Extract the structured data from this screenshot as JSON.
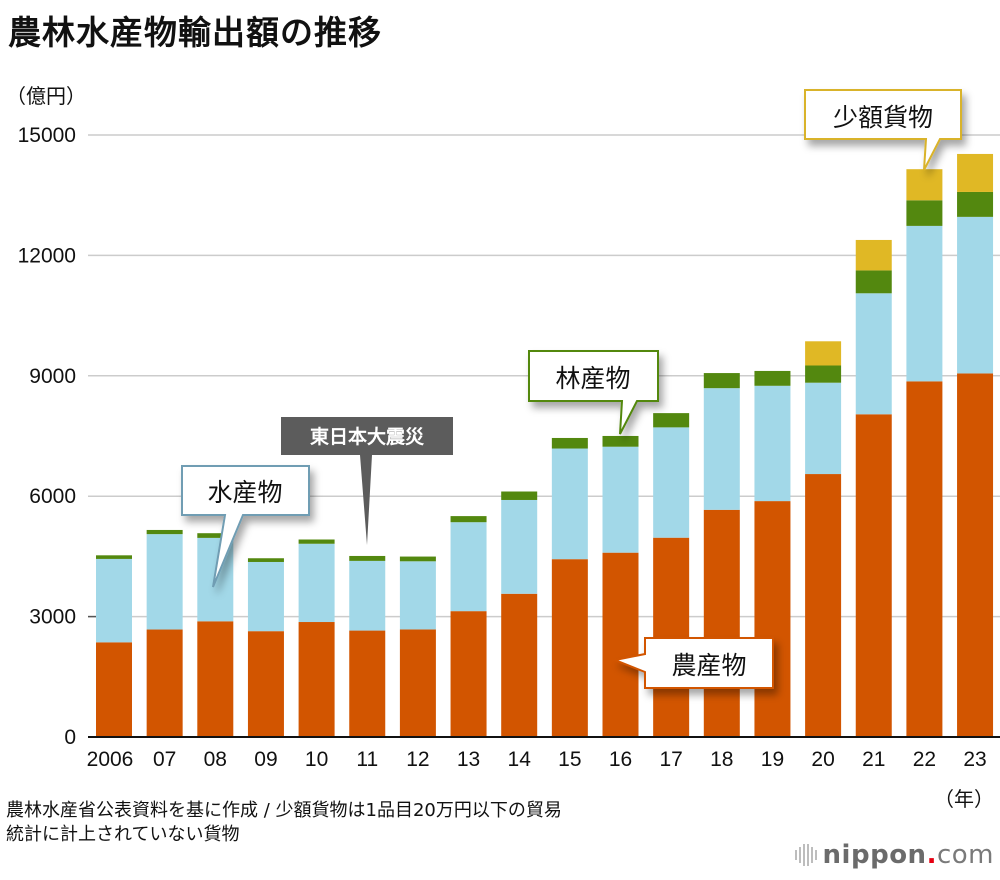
{
  "chart_data": {
    "type": "bar",
    "stacked": true,
    "title": "農林水産物輸出額の推移",
    "ylabel": "（億円）",
    "xlabel": "（年）",
    "ylim": [
      0,
      15000
    ],
    "yticks": [
      0,
      3000,
      6000,
      9000,
      12000,
      15000
    ],
    "grid": true,
    "categories": [
      "2006",
      "07",
      "08",
      "09",
      "10",
      "11",
      "12",
      "13",
      "14",
      "15",
      "16",
      "17",
      "18",
      "19",
      "20",
      "21",
      "22",
      "23"
    ],
    "series": [
      {
        "name": "農産物",
        "color": "#d25500",
        "values": [
          2359,
          2678,
          2883,
          2637,
          2865,
          2652,
          2680,
          3136,
          3569,
          4431,
          4593,
          4966,
          5661,
          5878,
          6552,
          8041,
          8862,
          9059
        ]
      },
      {
        "name": "水産物",
        "color": "#a2d8e8",
        "values": [
          2078,
          2377,
          2078,
          1724,
          1950,
          1736,
          1698,
          2216,
          2337,
          2757,
          2640,
          2749,
          3031,
          2873,
          2276,
          3015,
          3873,
          3901
        ]
      },
      {
        "name": "林産物",
        "color": "#53880f",
        "values": [
          90,
          104,
          117,
          93,
          106,
          123,
          118,
          152,
          211,
          263,
          268,
          355,
          376,
          370,
          429,
          570,
          638,
          621
        ]
      },
      {
        "name": "少額貨物",
        "color": "#e0b825",
        "values": [
          0,
          0,
          0,
          0,
          0,
          0,
          0,
          0,
          0,
          0,
          0,
          0,
          0,
          0,
          603,
          759,
          775,
          947
        ]
      }
    ],
    "annotations": [
      {
        "text": "水産物",
        "target_series": "水産物",
        "target_category": "08",
        "border_color": "#6f9db3"
      },
      {
        "text": "東日本大震災",
        "target_category": "11",
        "style": "dark-label",
        "fill": "#5c5c5c"
      },
      {
        "text": "林産物",
        "target_series": "林産物",
        "target_category": "16",
        "border_color": "#53880f"
      },
      {
        "text": "少額貨物",
        "target_series": "少額貨物",
        "target_category": "22",
        "border_color": "#d9b32a"
      },
      {
        "text": "農産物",
        "target_series": "農産物",
        "target_category": "17",
        "border_color": "#d25500"
      }
    ]
  },
  "header": {
    "title": "農林水産物輸出額の推移",
    "unit": "（億円）"
  },
  "axis": {
    "year_unit": "（年）"
  },
  "footnote": {
    "line1": "農林水産省公表資料を基に作成 / 少額貨物は1品目20万円以下の貿易",
    "line2": "統計に計上されていない貨物"
  },
  "logo": {
    "name": "nippon",
    "dot": ".",
    "suffix": "com"
  }
}
